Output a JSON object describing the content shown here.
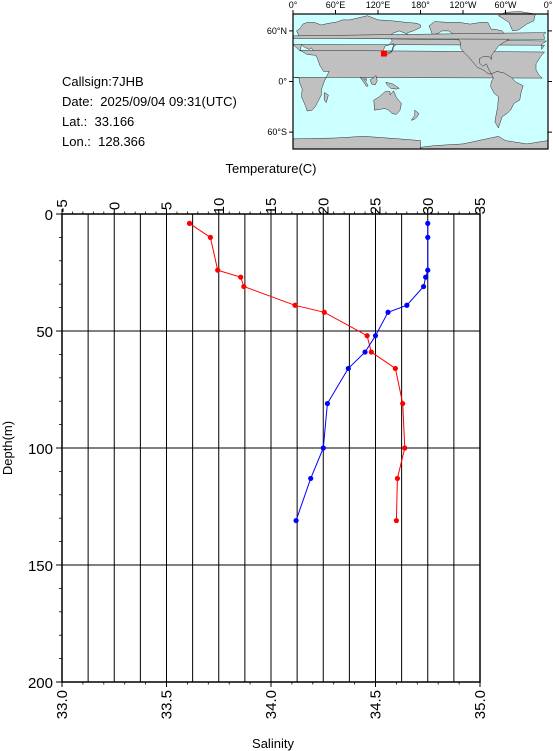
{
  "info": {
    "callsign": "Callsign:7JHB",
    "date": "Date:  2025/09/04 09:31(UTC)",
    "lat": "Lat.:  33.166",
    "lon": "Lon.:  128.366"
  },
  "map": {
    "top_labels": [
      "0°",
      "60°E",
      "120°E",
      "180°",
      "120°W",
      "60°W",
      "0°"
    ],
    "lat_labels": [
      "60°N",
      "0°",
      "60°S"
    ],
    "ocean_color": "#ccffff",
    "land_color": "#c0c0c0",
    "marker_color": "#ff0000",
    "station": {
      "lon": 128.366,
      "lat": 33.166
    }
  },
  "chart_data": {
    "type": "line",
    "grid": true,
    "y_axis": {
      "label": "Depth(m)",
      "range": [
        0,
        200
      ],
      "ticks": [
        0,
        50,
        100,
        150,
        200
      ],
      "inverted": true
    },
    "top_axis": {
      "label": "Temperature(C)",
      "range": [
        -5,
        35
      ],
      "ticks": [
        -5,
        0,
        5,
        10,
        15,
        20,
        25,
        30,
        35
      ]
    },
    "bottom_axis": {
      "label": "Salinity",
      "range": [
        33.0,
        35.0
      ],
      "ticks": [
        "33.0",
        "33.5",
        "34.0",
        "34.5",
        "35.0"
      ]
    },
    "series": [
      {
        "axis": "top",
        "color": "#ff0000",
        "points": [
          {
            "x": 7.2,
            "y": 4
          },
          {
            "x": 9.2,
            "y": 10
          },
          {
            "x": 9.9,
            "y": 24
          },
          {
            "x": 12.1,
            "y": 27
          },
          {
            "x": 12.4,
            "y": 31
          },
          {
            "x": 17.3,
            "y": 39
          },
          {
            "x": 20.1,
            "y": 42
          },
          {
            "x": 24.2,
            "y": 52
          },
          {
            "x": 24.6,
            "y": 59
          },
          {
            "x": 26.9,
            "y": 66
          },
          {
            "x": 27.6,
            "y": 81
          },
          {
            "x": 27.8,
            "y": 100
          },
          {
            "x": 27.1,
            "y": 113
          },
          {
            "x": 27.0,
            "y": 131
          }
        ]
      },
      {
        "axis": "bottom",
        "color": "#0000ff",
        "points": [
          {
            "x": 34.75,
            "y": 4
          },
          {
            "x": 34.75,
            "y": 10
          },
          {
            "x": 34.75,
            "y": 24
          },
          {
            "x": 34.74,
            "y": 27
          },
          {
            "x": 34.73,
            "y": 31
          },
          {
            "x": 34.65,
            "y": 39
          },
          {
            "x": 34.56,
            "y": 42
          },
          {
            "x": 34.5,
            "y": 52
          },
          {
            "x": 34.45,
            "y": 59
          },
          {
            "x": 34.37,
            "y": 66
          },
          {
            "x": 34.27,
            "y": 81
          },
          {
            "x": 34.25,
            "y": 100
          },
          {
            "x": 34.19,
            "y": 113
          },
          {
            "x": 34.12,
            "y": 131
          }
        ]
      }
    ]
  }
}
